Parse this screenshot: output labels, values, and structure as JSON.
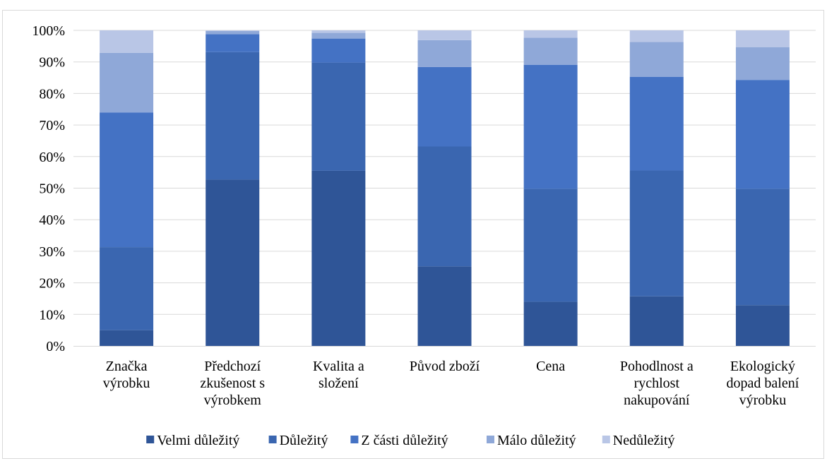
{
  "chart_data": {
    "type": "bar",
    "stacked": true,
    "percent": true,
    "categories": [
      [
        "Značka",
        "výrobku"
      ],
      [
        "Předchozí",
        "zkušenost s",
        "výrobkem"
      ],
      [
        "Kvalita a",
        "složení"
      ],
      [
        "Původ zboží"
      ],
      [
        "Cena"
      ],
      [
        "Pohodlnost a",
        "rychlost",
        "nakupování"
      ],
      [
        "Ekologický",
        "dopad balení",
        "výrobku"
      ]
    ],
    "series": [
      {
        "name": "Velmi důležitý",
        "color": "#2F5597",
        "values": [
          5,
          52.7,
          55.5,
          25.2,
          14,
          15.7,
          12.9
        ]
      },
      {
        "name": "Důležitý",
        "color": "#3A66B0",
        "values": [
          26.3,
          40.4,
          34.3,
          38,
          35.8,
          39.9,
          36.9
        ]
      },
      {
        "name": "Z části důležitý",
        "color": "#4472C4",
        "values": [
          42.7,
          5.7,
          7.6,
          25.2,
          39.3,
          29.7,
          34.5
        ]
      },
      {
        "name": "Málo důležitý",
        "color": "#8FA8D8",
        "values": [
          18.9,
          1,
          1.8,
          8.5,
          8.6,
          11,
          10.4
        ]
      },
      {
        "name": "Nedůležitý",
        "color": "#B9C6E6",
        "values": [
          7.1,
          0.2,
          0.8,
          3.1,
          2.3,
          3.7,
          5.3
        ]
      }
    ],
    "y_ticks": [
      "0%",
      "10%",
      "20%",
      "30%",
      "40%",
      "50%",
      "60%",
      "70%",
      "80%",
      "90%",
      "100%"
    ],
    "ylim": [
      0,
      100
    ],
    "grid": true,
    "legend_position": "bottom"
  }
}
